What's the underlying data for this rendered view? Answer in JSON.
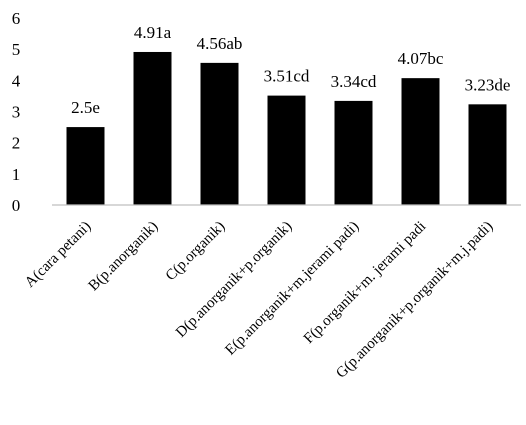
{
  "chart_data": {
    "type": "bar",
    "categories": [
      "A(cara petani)",
      "B(p.anorganik)",
      "C(p.organik)",
      "D(p.anorganik+p.organik)",
      "E(p.anorganik+m.jerami padi)",
      "F(p.organik+m. jerami padi",
      "G(p.anorganik+p.organik+m.j.padi)"
    ],
    "values": [
      2.5,
      4.91,
      4.56,
      3.51,
      3.34,
      4.07,
      3.23
    ],
    "data_labels": [
      "2.5e",
      "4.91a",
      "4.56ab",
      "3.51cd",
      "3.34cd",
      "4.07bc",
      "3.23de"
    ],
    "yticks": [
      "0",
      "1",
      "2",
      "3",
      "4",
      "5",
      "6"
    ],
    "ylim": [
      0,
      6
    ],
    "bar_color": "#000000",
    "grid": false,
    "legend": false
  }
}
